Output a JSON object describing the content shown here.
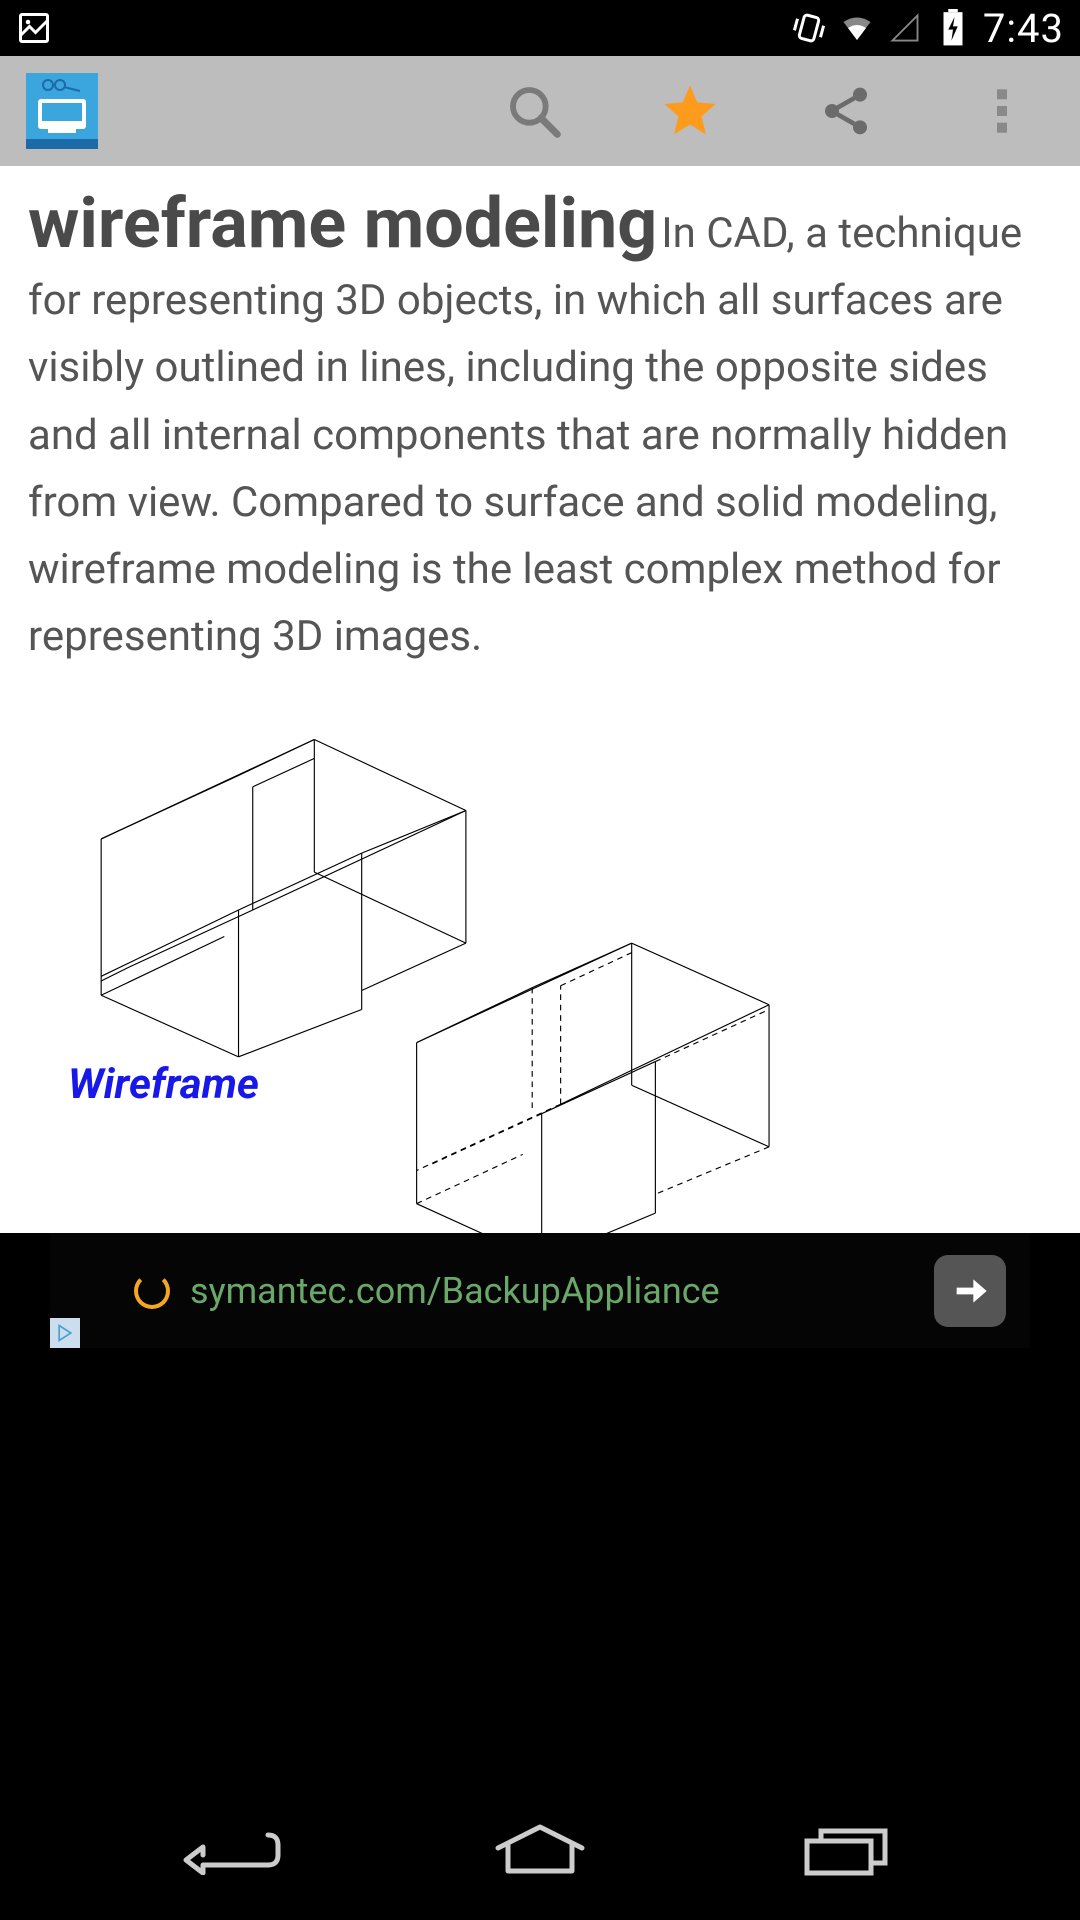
{
  "status": {
    "time": "7:43",
    "icon_color": "#ffffff"
  },
  "toolbar": {
    "background": "#bdbdbd",
    "logo_colors": {
      "top": "#3aa6dd",
      "body": "#1c6aa8",
      "accent": "#ffffff"
    },
    "icons": {
      "search_color": "#7a7a7a",
      "star_color": "#fd9b1c",
      "share_color": "#6b6b6b",
      "overflow_color": "#898989"
    }
  },
  "article": {
    "term": "wireframe modeling",
    "definition": "In CAD, a technique for representing 3D objects, in which all surfaces are visibly outlined in lines, including the opposite sides and all internal components that are normally hidden from view. Compared to surface and solid modeling, wireframe modeling is the least complex method for representing 3D images.",
    "term_color": "#4a4a4a",
    "body_color": "#555555",
    "diagram": {
      "label": "Wireframe",
      "label_color": "#1818e8",
      "line_color": "#000000",
      "shape1_lines": [
        [
          280,
          10,
          440,
          85
        ],
        [
          440,
          85,
          440,
          225
        ],
        [
          440,
          225,
          280,
          150
        ],
        [
          280,
          150,
          280,
          10
        ],
        [
          280,
          10,
          55,
          115
        ],
        [
          55,
          115,
          55,
          280
        ],
        [
          55,
          280,
          200,
          345
        ],
        [
          200,
          345,
          200,
          190
        ],
        [
          200,
          190,
          330,
          130
        ],
        [
          330,
          130,
          330,
          295
        ],
        [
          330,
          295,
          200,
          345
        ],
        [
          440,
          85,
          215,
          190
        ],
        [
          215,
          190,
          215,
          60
        ],
        [
          215,
          60,
          280,
          30
        ],
        [
          55,
          115,
          200,
          48
        ],
        [
          200,
          48,
          280,
          10
        ],
        [
          440,
          225,
          330,
          275
        ],
        [
          55,
          280,
          185,
          218
        ],
        [
          215,
          190,
          85,
          250
        ],
        [
          85,
          250,
          55,
          265
        ],
        [
          330,
          130,
          440,
          85
        ],
        [
          200,
          190,
          55,
          260
        ]
      ],
      "shape2_solid": [
        [
          615,
          225,
          760,
          290
        ],
        [
          760,
          290,
          760,
          440
        ],
        [
          760,
          440,
          615,
          375
        ],
        [
          615,
          375,
          615,
          225
        ],
        [
          615,
          225,
          388,
          330
        ],
        [
          388,
          330,
          388,
          500
        ],
        [
          388,
          500,
          520,
          560
        ],
        [
          520,
          560,
          520,
          405
        ],
        [
          520,
          405,
          640,
          350
        ],
        [
          640,
          350,
          640,
          510
        ],
        [
          640,
          510,
          520,
          560
        ],
        [
          760,
          290,
          540,
          395
        ],
        [
          388,
          330,
          510,
          272
        ],
        [
          510,
          272,
          615,
          225
        ]
      ],
      "shape2_dashed": [
        [
          760,
          440,
          640,
          490
        ],
        [
          388,
          500,
          500,
          448
        ],
        [
          540,
          395,
          540,
          270
        ],
        [
          540,
          270,
          615,
          235
        ],
        [
          640,
          350,
          760,
          295
        ],
        [
          520,
          405,
          400,
          460
        ],
        [
          540,
          395,
          420,
          450
        ],
        [
          420,
          450,
          388,
          465
        ],
        [
          510,
          272,
          510,
          400
        ]
      ]
    }
  },
  "ad": {
    "text": "symantec.com/BackupAppliance",
    "text_color": "#6aa86a",
    "spinner_color": "#f5a623",
    "arrow_bg": "#555555",
    "badge_color": "#4aa0d0"
  }
}
